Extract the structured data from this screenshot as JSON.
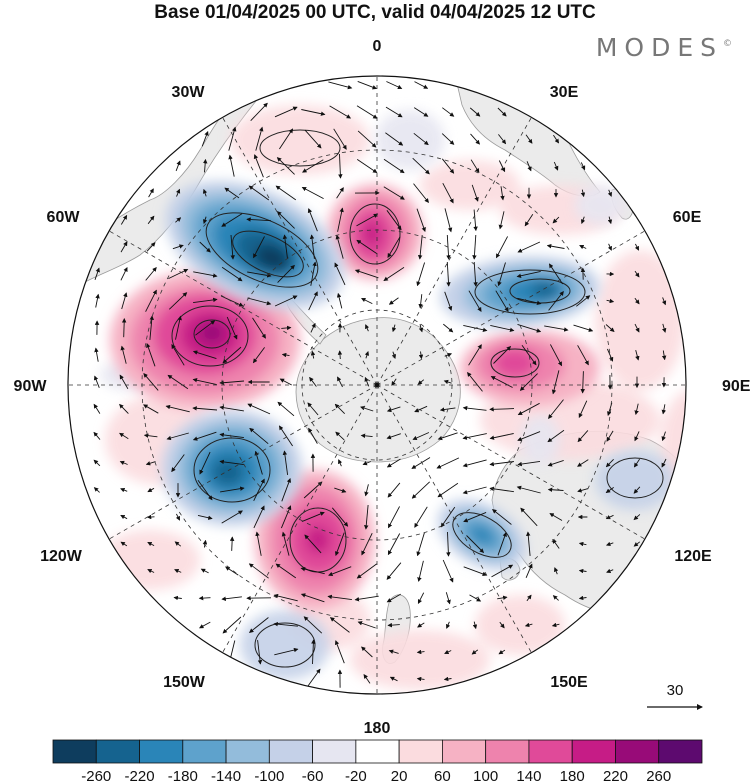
{
  "title": "Base 01/04/2025 00 UTC, valid 04/04/2025 12 UTC",
  "logo": "MODES",
  "logo_mark": "©",
  "longitude_labels": {
    "lon_0": "0",
    "lon_30e": "30E",
    "lon_60e": "60E",
    "lon_90e": "90E",
    "lon_120e": "120E",
    "lon_150e": "150E",
    "lon_180": "180",
    "lon_150w": "150W",
    "lon_120w": "120W",
    "lon_90w": "90W",
    "lon_60w": "60W",
    "lon_30w": "30W"
  },
  "vector_reference": "30",
  "colorbar": {
    "colors": [
      "#0e3d5e",
      "#15638f",
      "#2a85b8",
      "#5ea2cc",
      "#93bcdb",
      "#c5d1e8",
      "#e6e6f1",
      "#ffffff",
      "#fbdcdf",
      "#f6b2c4",
      "#ee83ad",
      "#e04a99",
      "#c61c86",
      "#980b78",
      "#5d0a6f"
    ],
    "ticks": [
      "-260",
      "-220",
      "-180",
      "-140",
      "-100",
      "-60",
      "-20",
      "20",
      "60",
      "100",
      "140",
      "180",
      "220",
      "260"
    ]
  }
}
